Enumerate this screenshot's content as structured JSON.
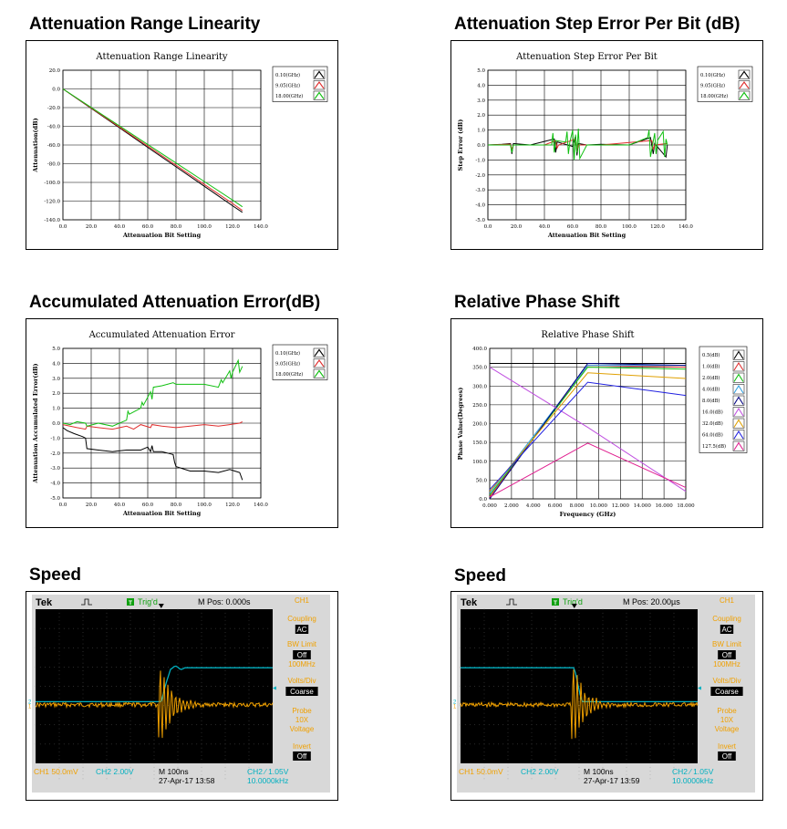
{
  "charts": [
    {
      "heading": "Attenuation Range Linearity",
      "chart_data": {
        "type": "line",
        "title": "Attenuation Range Linearity",
        "xlabel": "Attenuation Bit Setting",
        "ylabel": "Attenuation(dB)",
        "xlim": [
          0,
          140
        ],
        "ylim": [
          -140,
          20
        ],
        "xticks": [
          0,
          20,
          40,
          60,
          80,
          100,
          120,
          140
        ],
        "yticks": [
          20,
          0,
          -20,
          -40,
          -60,
          -80,
          -100,
          -120,
          -140
        ],
        "xtick_labels": [
          "0.0",
          "20.0",
          "40.0",
          "60.0",
          "80.0",
          "100.0",
          "120.0",
          "140.0"
        ],
        "ytick_labels": [
          "20.0",
          "0.0",
          "-20.0",
          "-40.0",
          "-60.0",
          "-80.0",
          "-100.0",
          "-120.0",
          "-140.0"
        ],
        "grid": true,
        "legend_position": "top-right",
        "series": [
          {
            "name": "0.10(GHz)",
            "color": "#000000",
            "x": [
              0,
              20,
              40,
              60,
              80,
              100,
              120,
              127
            ],
            "values": [
              0,
              -20.8,
              -41.6,
              -62.5,
              -83.3,
              -104.1,
              -125,
              -132
            ]
          },
          {
            "name": "9.05(GHz)",
            "color": "#e03030",
            "x": [
              0,
              20,
              40,
              60,
              80,
              100,
              120,
              127
            ],
            "values": [
              0,
              -20.4,
              -40.8,
              -61.2,
              -81.7,
              -102.1,
              -122.5,
              -130
            ]
          },
          {
            "name": "18.00(GHz)",
            "color": "#10c010",
            "x": [
              0,
              20,
              40,
              60,
              80,
              100,
              120,
              127
            ],
            "values": [
              0,
              -19.8,
              -39.6,
              -59.4,
              -79.2,
              -99,
              -118.8,
              -126
            ]
          }
        ]
      }
    },
    {
      "heading": "Attenuation Step Error Per Bit (dB)",
      "chart_data": {
        "type": "line",
        "title": "Attenuation Step Error Per Bit",
        "xlabel": "Attenuation Bit Setting",
        "ylabel": "Step Error (dB)",
        "xlim": [
          0,
          140
        ],
        "ylim": [
          -5,
          5
        ],
        "xticks": [
          0,
          20,
          40,
          60,
          80,
          100,
          120,
          140
        ],
        "yticks": [
          5,
          4,
          3,
          2,
          1,
          0,
          -1,
          -2,
          -3,
          -4,
          -5
        ],
        "xtick_labels": [
          "0.0",
          "20.0",
          "40.0",
          "60.0",
          "80.0",
          "100.0",
          "120.0",
          "140.0"
        ],
        "ytick_labels": [
          "5.0",
          "4.0",
          "3.0",
          "2.0",
          "1.0",
          "0.0",
          "-1.0",
          "-2.0",
          "-3.0",
          "-4.0",
          "-5.0"
        ],
        "grid": true,
        "legend_position": "top-right",
        "series": [
          {
            "name": "0.10(GHz)",
            "color": "#000000",
            "x": [
              0,
              10,
              16,
              17,
              18,
              30,
              47,
              48,
              49,
              60,
              62,
              63,
              64,
              70,
              80,
              100,
              115,
              117,
              118,
              126,
              127
            ],
            "values": [
              0,
              0.05,
              0.1,
              -0.6,
              0.1,
              0,
              0.4,
              -0.5,
              0.2,
              -0.1,
              0.6,
              -0.7,
              0.1,
              0,
              0.05,
              0,
              0.5,
              -0.6,
              0.1,
              -0.8,
              0
            ]
          },
          {
            "name": "9.05(GHz)",
            "color": "#e03030",
            "x": [
              0,
              16,
              17,
              18,
              40,
              48,
              49,
              50,
              62,
              63,
              64,
              80,
              116,
              117,
              118,
              127
            ],
            "values": [
              0,
              0.05,
              -0.3,
              0,
              0,
              0.3,
              -0.2,
              0,
              0.4,
              -0.4,
              0,
              0,
              0.3,
              -0.3,
              0,
              0.1
            ]
          },
          {
            "name": "18.00(GHz)",
            "color": "#10c010",
            "x": [
              0,
              16,
              17,
              18,
              45,
              46,
              47,
              48,
              55,
              56,
              57,
              58,
              60,
              61,
              62,
              63,
              64,
              65,
              70,
              80,
              100,
              113,
              114,
              115,
              118,
              119,
              120,
              124,
              125,
              126,
              127
            ],
            "values": [
              0,
              0,
              -0.5,
              0,
              0,
              0.8,
              -0.5,
              0.3,
              0.2,
              0.9,
              -0.6,
              0.2,
              1.0,
              -1.0,
              0.7,
              -0.5,
              1.1,
              -0.9,
              0,
              0,
              0,
              0.5,
              1.0,
              -0.8,
              0.8,
              -0.6,
              0.3,
              0.9,
              -0.8,
              0.4,
              0
            ]
          }
        ]
      }
    },
    {
      "heading": "Accumulated Attenuation Error(dB)",
      "chart_data": {
        "type": "line",
        "title": "Accumulated Attenuation Error",
        "xlabel": "Attenuation Bit Setting",
        "ylabel": "Attenuation Accumulated Error(dB)",
        "xlim": [
          0,
          140
        ],
        "ylim": [
          -5,
          5
        ],
        "xticks": [
          0,
          20,
          40,
          60,
          80,
          100,
          120,
          140
        ],
        "yticks": [
          5,
          4,
          3,
          2,
          1,
          0,
          -1,
          -2,
          -3,
          -4,
          -5
        ],
        "xtick_labels": [
          "0.0",
          "20.0",
          "40.0",
          "60.0",
          "80.0",
          "100.0",
          "120.0",
          "140.0"
        ],
        "ytick_labels": [
          "5.0",
          "4.0",
          "3.0",
          "2.0",
          "1.0",
          "0.0",
          "-1.0",
          "-2.0",
          "-3.0",
          "-4.0",
          "-5.0"
        ],
        "grid": true,
        "legend_position": "top-right",
        "series": [
          {
            "name": "0.10(GHz)",
            "color": "#000000",
            "x": [
              0,
              3,
              8,
              14,
              16,
              17,
              25,
              35,
              45,
              55,
              60,
              62,
              63,
              64,
              70,
              78,
              79,
              80,
              90,
              100,
              110,
              118,
              125,
              127
            ],
            "values": [
              -0.3,
              -0.5,
              -0.7,
              -0.9,
              -1.0,
              -1.7,
              -1.8,
              -1.9,
              -1.8,
              -1.8,
              -1.6,
              -1.9,
              -1.5,
              -1.9,
              -1.9,
              -2.1,
              -2.6,
              -2.9,
              -3.2,
              -3.2,
              -3.3,
              -3.1,
              -3.3,
              -3.8
            ]
          },
          {
            "name": "9.05(GHz)",
            "color": "#e03030",
            "x": [
              0,
              5,
              10,
              16,
              17,
              25,
              35,
              45,
              50,
              55,
              62,
              63,
              70,
              80,
              90,
              100,
              110,
              118,
              125,
              127
            ],
            "values": [
              -0.1,
              -0.2,
              -0.3,
              -0.4,
              -0.2,
              -0.3,
              -0.4,
              -0.2,
              -0.4,
              -0.1,
              -0.3,
              -0.1,
              -0.2,
              -0.3,
              -0.2,
              -0.1,
              -0.2,
              -0.1,
              0.0,
              0.1
            ]
          },
          {
            "name": "18.00(GHz)",
            "color": "#10c010",
            "x": [
              0,
              5,
              10,
              16,
              17,
              25,
              35,
              45,
              46,
              47,
              55,
              56,
              57,
              62,
              63,
              64,
              70,
              78,
              80,
              90,
              100,
              110,
              112,
              113,
              118,
              119,
              120,
              124,
              125,
              127
            ],
            "values": [
              0,
              -0.1,
              0.1,
              0,
              -0.2,
              0,
              -0.2,
              0.2,
              0.8,
              0.6,
              1.0,
              1.4,
              1.2,
              2.1,
              1.6,
              2.4,
              2.5,
              2.7,
              2.6,
              2.6,
              2.6,
              2.4,
              2.9,
              2.7,
              3.5,
              3.0,
              3.4,
              4.2,
              3.4,
              3.8
            ]
          }
        ]
      }
    },
    {
      "heading": "Relative Phase Shift",
      "chart_data": {
        "type": "line",
        "title": "Relative Phase Shift",
        "xlabel": "Frequency (GHz)",
        "ylabel": "Phase Value(Degrees)",
        "xlim": [
          0,
          18
        ],
        "ylim": [
          0,
          400
        ],
        "xticks": [
          0,
          2,
          4,
          6,
          8,
          10,
          12,
          14,
          16,
          18
        ],
        "yticks": [
          400,
          350,
          300,
          250,
          200,
          150,
          100,
          50,
          0
        ],
        "xtick_labels": [
          "0.000",
          "2.000",
          "4.000",
          "6.000",
          "8.000",
          "10.000",
          "12.000",
          "14.000",
          "16.000",
          "18.000"
        ],
        "ytick_labels": [
          "400.0",
          "350.0",
          "300.0",
          "250.0",
          "200.0",
          "150.0",
          "100.0",
          "50.0",
          "0.0"
        ],
        "grid": true,
        "legend_position": "right",
        "series": [
          {
            "name": "0.5(dB)",
            "color": "#000000",
            "x": [
              0,
              9,
              18
            ],
            "values": [
              360,
              360,
              360
            ]
          },
          {
            "name": "1.0(dB)",
            "color": "#e03030",
            "x": [
              0,
              9,
              18
            ],
            "values": [
              5,
              355,
              350
            ]
          },
          {
            "name": "2.0(dB)",
            "color": "#10c010",
            "x": [
              0,
              9,
              18
            ],
            "values": [
              10,
              350,
              345
            ]
          },
          {
            "name": "4.0(dB)",
            "color": "#30a0e0",
            "x": [
              0,
              9,
              18
            ],
            "values": [
              15,
              355,
              355
            ]
          },
          {
            "name": "8.0(dB)",
            "color": "#000080",
            "x": [
              0,
              9,
              18
            ],
            "values": [
              0,
              360,
              355
            ]
          },
          {
            "name": "16.0(dB)",
            "color": "#c050e0",
            "x": [
              0,
              9,
              18
            ],
            "values": [
              350,
              190,
              20
            ]
          },
          {
            "name": "32.0(dB)",
            "color": "#e0a000",
            "x": [
              0,
              9,
              18
            ],
            "values": [
              20,
              335,
              320
            ]
          },
          {
            "name": "64.0(dB)",
            "color": "#2020e0",
            "x": [
              0,
              9,
              18
            ],
            "values": [
              25,
              310,
              275
            ]
          },
          {
            "name": "127.5(dB)",
            "color": "#e02090",
            "x": [
              0,
              9,
              18
            ],
            "values": [
              5,
              148,
              30
            ]
          }
        ]
      }
    }
  ],
  "scopes": [
    {
      "heading": "Speed",
      "brand": "Tek",
      "trig_label": "T",
      "trig_text": "Trig'd",
      "mpos": "M Pos: 0.000s",
      "ch_title": "CH1",
      "coupling_label": "Coupling",
      "coupling_value": "AC",
      "bw_label": "BW Limit",
      "bw_value": "Off",
      "bw_sub": "100MHz",
      "volts_label": "Volts/Div",
      "volts_value": "Coarse",
      "probe_label": "Probe",
      "probe_value": "10X",
      "probe_sub": "Voltage",
      "invert_label": "Invert",
      "invert_value": "Off",
      "ch1_status": "CH1  50.0mV",
      "ch2_status": "CH2  2.00V",
      "timebase": "M 100ns",
      "timestamp": "27-Apr-17 13:58",
      "trigger_level": "CH2 ∕ 1.05V",
      "frequency": "10.0000kHz",
      "edge_fraction": 0.53,
      "colors": {
        "ch1": "#f0a000",
        "ch2": "#00b0c0",
        "menu": "#f0a000"
      }
    },
    {
      "heading": "Speed",
      "brand": "Tek",
      "trig_label": "T",
      "trig_text": "Trig'd",
      "mpos": "M Pos: 20.00µs",
      "ch_title": "CH1",
      "coupling_label": "Coupling",
      "coupling_value": "AC",
      "bw_label": "BW Limit",
      "bw_value": "Off",
      "bw_sub": "100MHz",
      "volts_label": "Volts/Div",
      "volts_value": "Coarse",
      "probe_label": "Probe",
      "probe_value": "10X",
      "probe_sub": "Voltage",
      "invert_label": "Invert",
      "invert_value": "Off",
      "ch1_status": "CH1  50.0mV",
      "ch2_status": "CH2  2.00V",
      "timebase": "M 100ns",
      "timestamp": "27-Apr-17 13:59",
      "trigger_level": "CH2 ∕ 1.05V",
      "frequency": "10.0000kHz",
      "edge_fraction": 0.48,
      "colors": {
        "ch1": "#f0a000",
        "ch2": "#00b0c0",
        "menu": "#f0a000"
      }
    }
  ]
}
